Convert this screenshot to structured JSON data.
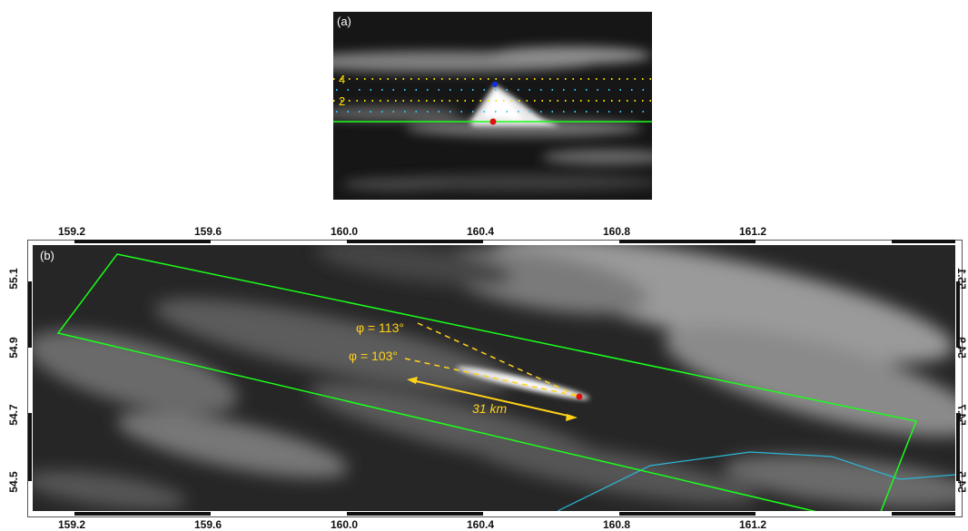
{
  "panel_a": {
    "tag": "(a)",
    "level_labels": [
      "4",
      "2"
    ]
  },
  "panel_b": {
    "tag": "(b)",
    "phi_labels": [
      "φ = 113°",
      "φ = 103°"
    ],
    "distance_label": "31 km",
    "lon_ticks": [
      "159.2",
      "159.6",
      "160.0",
      "160.4",
      "160.8",
      "161.2"
    ],
    "lat_ticks": [
      "55.1",
      "54.9",
      "54.7",
      "54.5"
    ]
  },
  "colors": {
    "outline": "#1aff1a",
    "annotation": "#ffd21a",
    "coast": "#2bb7d6",
    "marker_red": "#e01010",
    "marker_blue": "#1030e0",
    "dot_cyan": "#2fc3ff",
    "dot_yellow": "#ffe000"
  }
}
